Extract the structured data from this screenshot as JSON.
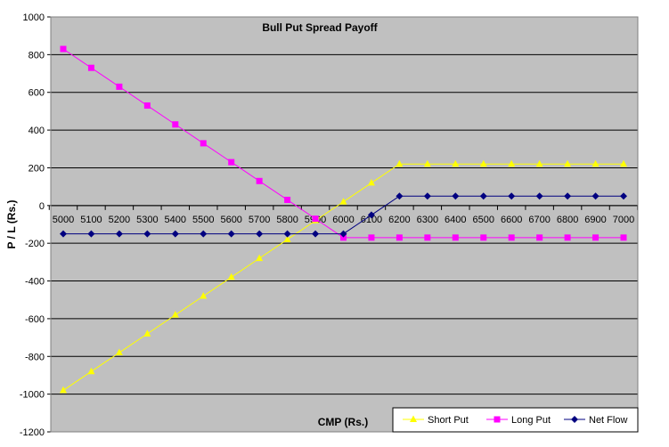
{
  "chart_data": {
    "type": "line",
    "title": "Bull Put Spread Payoff",
    "xlabel": "CMP (Rs.)",
    "ylabel": "P / L (Rs.)",
    "ylim": [
      -1200,
      1000
    ],
    "yticks": [
      1000,
      800,
      600,
      400,
      200,
      0,
      -200,
      -400,
      -600,
      -800,
      -1000,
      -1200
    ],
    "categories": [
      "5000",
      "5100",
      "5200",
      "5300",
      "5400",
      "5500",
      "5600",
      "5700",
      "5800",
      "5900",
      "6000",
      "6100",
      "6200",
      "6300",
      "6400",
      "6500",
      "6600",
      "6700",
      "6800",
      "6900",
      "7000"
    ],
    "grid": "horizontal",
    "legend_position": "bottom-right",
    "series": [
      {
        "name": "Short Put",
        "color": "#ffff00",
        "marker": "triangle",
        "values": [
          -980,
          -880,
          -780,
          -680,
          -580,
          -480,
          -380,
          -280,
          -180,
          -80,
          20,
          120,
          220,
          220,
          220,
          220,
          220,
          220,
          220,
          220,
          220
        ]
      },
      {
        "name": "Long Put",
        "color": "#ff00ff",
        "marker": "square",
        "values": [
          830,
          730,
          630,
          530,
          430,
          330,
          230,
          130,
          30,
          -70,
          -170,
          -170,
          -170,
          -170,
          -170,
          -170,
          -170,
          -170,
          -170,
          -170,
          -170
        ]
      },
      {
        "name": "Net Flow",
        "color": "#000080",
        "marker": "diamond",
        "values": [
          -150,
          -150,
          -150,
          -150,
          -150,
          -150,
          -150,
          -150,
          -150,
          -150,
          -150,
          -50,
          50,
          50,
          50,
          50,
          50,
          50,
          50,
          50,
          50
        ]
      }
    ]
  }
}
